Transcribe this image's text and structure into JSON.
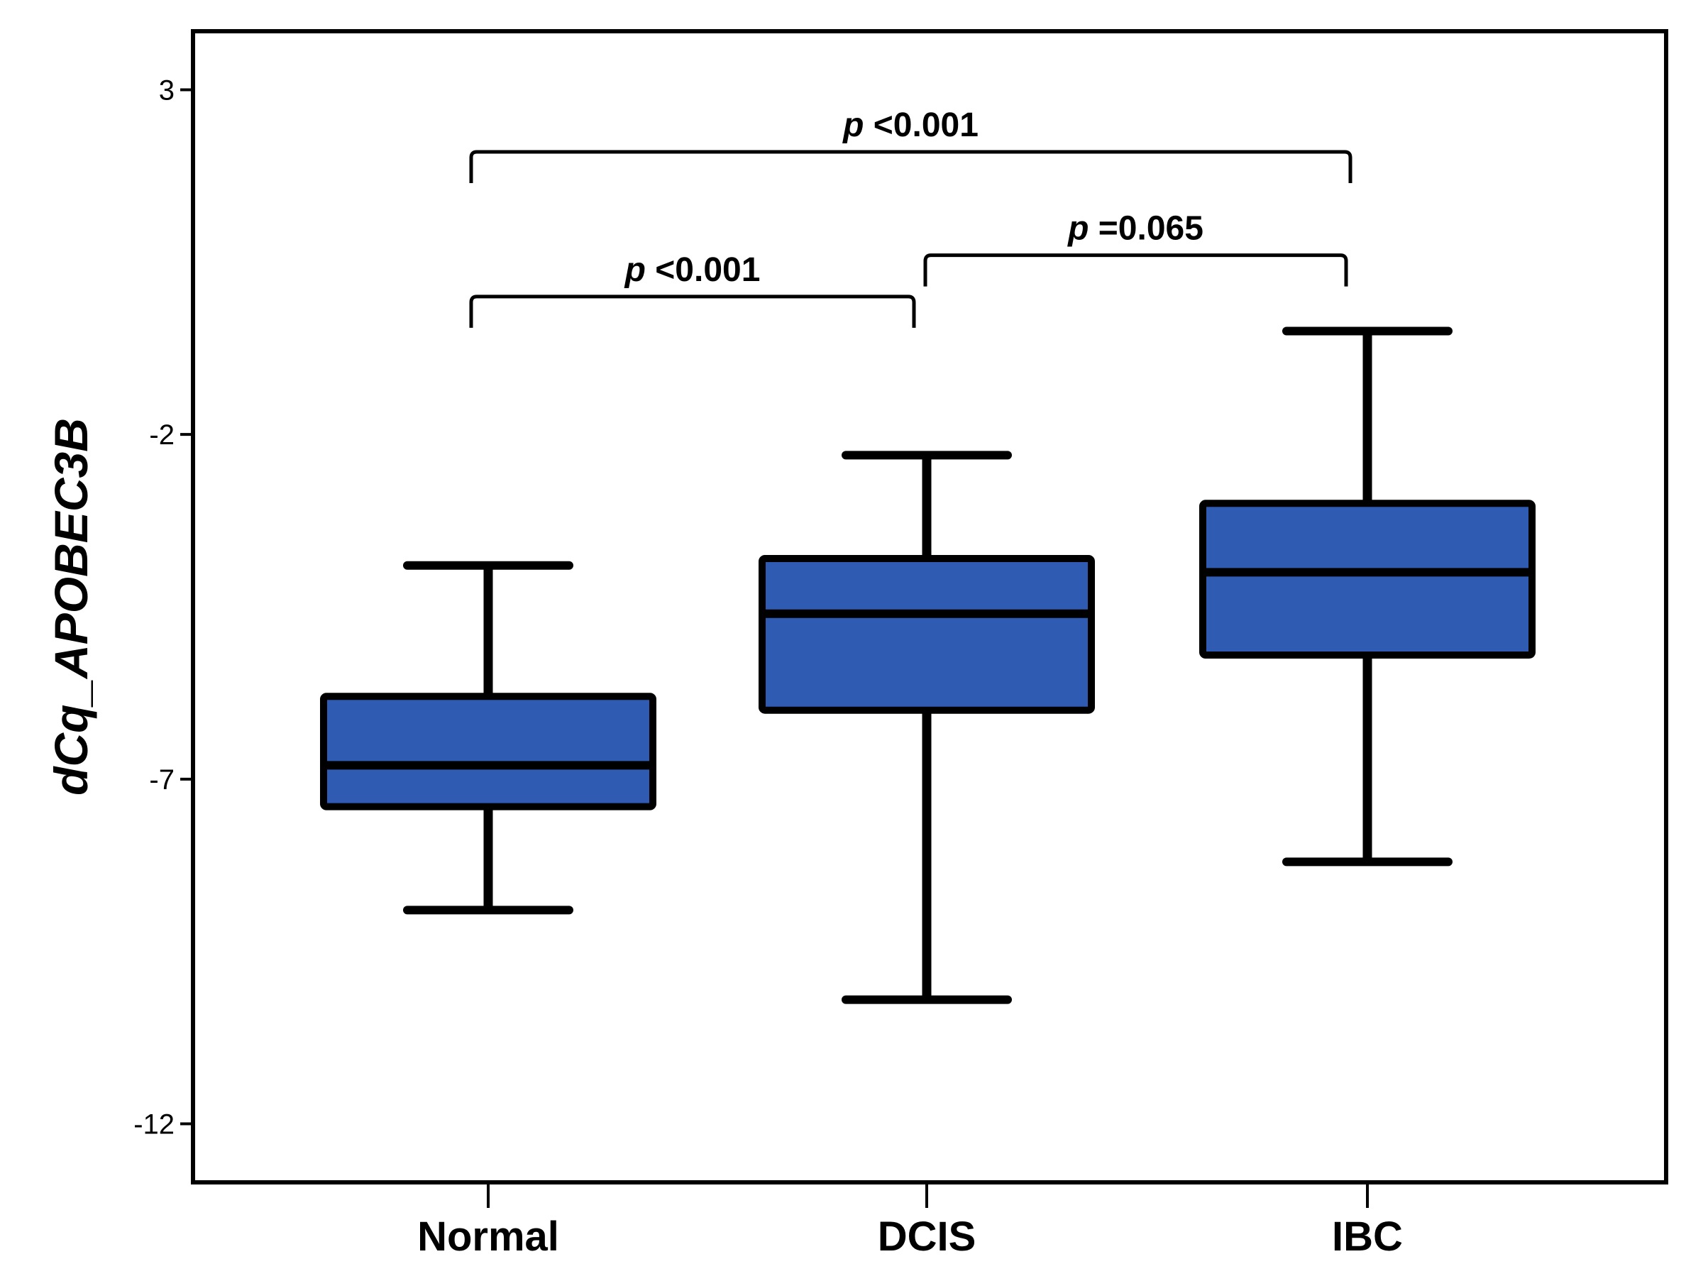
{
  "chart_data": {
    "type": "boxplot",
    "ylabel": "dCq_APOBEC3B",
    "xlabel": "",
    "ylim": [
      -12.85,
      3.85
    ],
    "yticks": [
      3,
      -2,
      -7,
      -12
    ],
    "ytick_labels": [
      "3",
      "-2",
      "-7",
      "-12"
    ],
    "categories": [
      "Normal",
      "DCIS",
      "IBC"
    ],
    "boxes": [
      {
        "category": "Normal",
        "whisker_low": -8.9,
        "q1": -7.4,
        "median": -6.8,
        "q3": -5.8,
        "whisker_high": -3.9
      },
      {
        "category": "DCIS",
        "whisker_low": -10.2,
        "q1": -6.0,
        "median": -4.6,
        "q3": -3.8,
        "whisker_high": -2.3
      },
      {
        "category": "IBC",
        "whisker_low": -8.2,
        "q1": -5.2,
        "median": -4.0,
        "q3": -3.0,
        "whisker_high": -0.5
      }
    ],
    "comparisons": [
      {
        "from": "Normal",
        "to": "IBC",
        "p_symbol": "p",
        "p_text": " <0.001",
        "y": 2.1
      },
      {
        "from": "Normal",
        "to": "DCIS",
        "p_symbol": "p",
        "p_text": " <0.001",
        "y": 0.0
      },
      {
        "from": "DCIS",
        "to": "IBC",
        "p_symbol": "p",
        "p_text": " =0.065",
        "y": 0.6
      }
    ],
    "grid": false,
    "legend": "none",
    "colors": {
      "box_fill": "#2f5bb3",
      "stroke": "#000000"
    }
  }
}
